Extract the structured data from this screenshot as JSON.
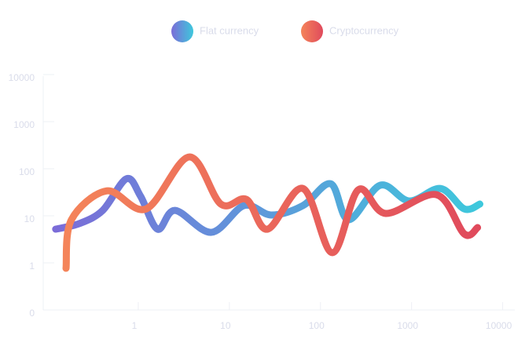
{
  "chart_data": {
    "type": "line",
    "series": [
      {
        "name": "Flat currency",
        "colors": [
          "#7b6cd8",
          "#3ec8dc"
        ],
        "x": [
          0.137,
          0.25,
          0.45,
          0.82,
          1.17,
          1.8,
          2.8,
          7,
          16,
          32,
          71,
          143,
          225,
          500,
          1040,
          2300,
          4180,
          6200
        ],
        "values": [
          6.3,
          8.3,
          15.8,
          74,
          31.6,
          6.3,
          15.8,
          5.4,
          20,
          12.6,
          20,
          58,
          10,
          54,
          25,
          46,
          17,
          21.5
        ]
      },
      {
        "name": "Cryptocurrency",
        "colors": [
          "#f4845a",
          "#e04a5c"
        ],
        "x": [
          0.178,
          0.204,
          0.5,
          1.35,
          4,
          8.9,
          17,
          29,
          71,
          149,
          287,
          574,
          2080,
          4180,
          5850
        ],
        "values": [
          0.93,
          10,
          41,
          17,
          215,
          21.5,
          27,
          6.3,
          46,
          2,
          43,
          13.6,
          34,
          5,
          6.8
        ]
      }
    ],
    "xlim": [
      0.1,
      15000
    ],
    "xticks": [
      1,
      10,
      100,
      1000,
      10000
    ],
    "ylim": [
      0.1,
      10000
    ],
    "yticks": [
      {
        "value": 0.1,
        "label": "0"
      },
      1,
      10,
      100,
      1000,
      10000
    ],
    "log_scale": true
  }
}
